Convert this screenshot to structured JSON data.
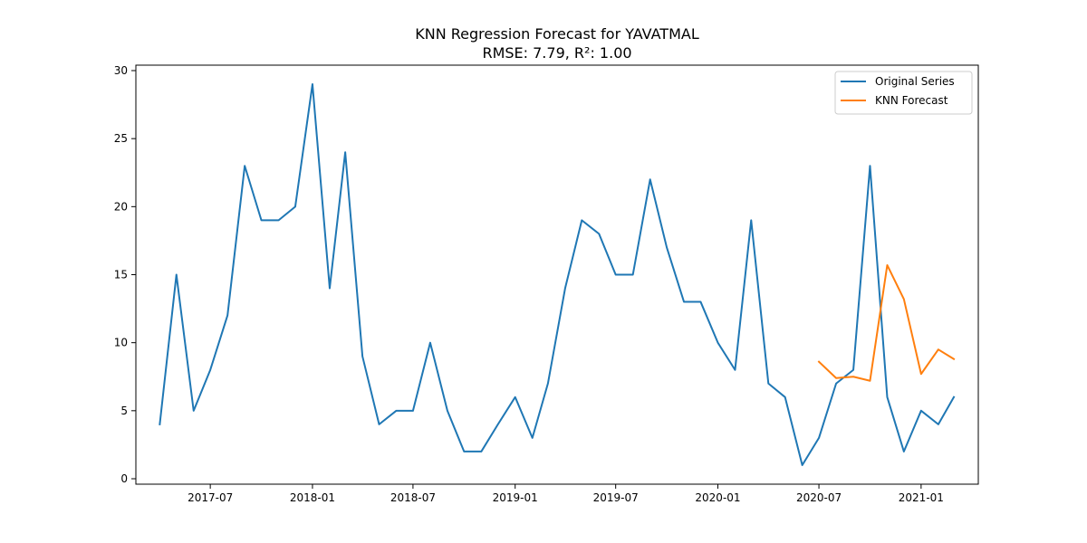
{
  "chart_data": {
    "type": "line",
    "title": "KNN Regression Forecast for YAVATMAL",
    "subtitle": "RMSE: 7.79, R²: 1.00",
    "xlabel": "",
    "ylabel": "",
    "x_ticks": [
      "2017-07",
      "2018-01",
      "2018-07",
      "2019-01",
      "2019-07",
      "2020-01",
      "2020-07",
      "2021-01"
    ],
    "y_ticks": [
      "0",
      "5",
      "10",
      "15",
      "20",
      "25",
      "30"
    ],
    "ylim": [
      -0.4,
      30.4
    ],
    "xlim": [
      "2017-02-17",
      "2021-04-14"
    ],
    "grid": false,
    "legend_position": "top-right",
    "series": [
      {
        "name": "Original Series",
        "color": "#1f77b4",
        "x": [
          "2017-04",
          "2017-05",
          "2017-06",
          "2017-07",
          "2017-08",
          "2017-09",
          "2017-10",
          "2017-11",
          "2017-12",
          "2018-01",
          "2018-02",
          "2018-03",
          "2018-04",
          "2018-05",
          "2018-06",
          "2018-07",
          "2018-08",
          "2018-09",
          "2018-10",
          "2018-11",
          "2018-12",
          "2019-01",
          "2019-02",
          "2019-03",
          "2019-04",
          "2019-05",
          "2019-06",
          "2019-07",
          "2019-08",
          "2019-09",
          "2019-10",
          "2019-11",
          "2019-12",
          "2020-01",
          "2020-02",
          "2020-03",
          "2020-04",
          "2020-05",
          "2020-06",
          "2020-07",
          "2020-08",
          "2020-09",
          "2020-10",
          "2020-11",
          "2020-12",
          "2021-01",
          "2021-02",
          "2021-03"
        ],
        "values": [
          4,
          15,
          5,
          8,
          12,
          23,
          19,
          19,
          20,
          29,
          14,
          24,
          9,
          4,
          5,
          5,
          10,
          5,
          2,
          2,
          4,
          6,
          3,
          7,
          14,
          19,
          18,
          15,
          15,
          22,
          17,
          13,
          13,
          10,
          8,
          19,
          7,
          6,
          1,
          3,
          7,
          8,
          23,
          6,
          2,
          5,
          4,
          6
        ]
      },
      {
        "name": "KNN Forecast",
        "color": "#ff7f0e",
        "x": [
          "2020-07",
          "2020-08",
          "2020-09",
          "2020-10",
          "2020-11",
          "2020-12",
          "2021-01",
          "2021-02",
          "2021-03"
        ],
        "values": [
          8.6,
          7.4,
          7.5,
          7.2,
          15.7,
          13.2,
          7.7,
          9.5,
          8.8
        ]
      }
    ]
  }
}
